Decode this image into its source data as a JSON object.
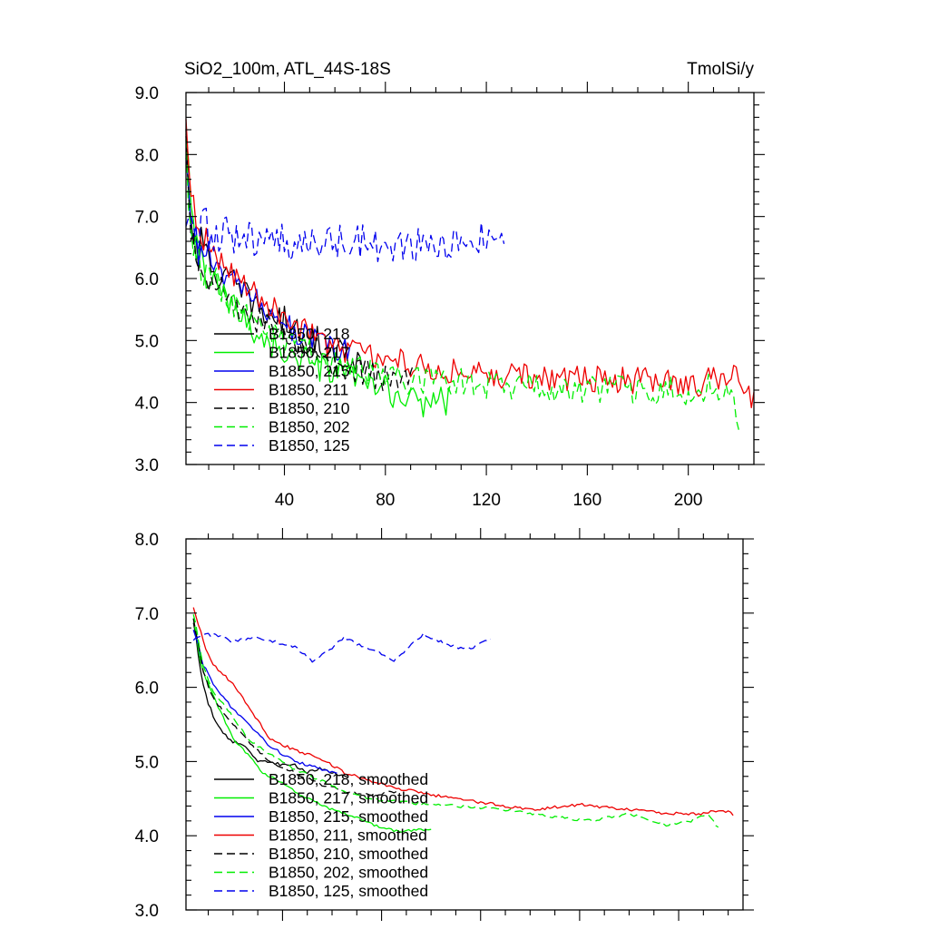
{
  "chart_data": [
    {
      "type": "line",
      "title_left": "SiO2_100m, ATL_44S-18S",
      "title_right": "TmolSi/y",
      "xlabel": "",
      "ylabel": "",
      "xlim": [
        1,
        226
      ],
      "ylim": [
        3.0,
        9.0
      ],
      "yticks": [
        "3.0",
        "4.0",
        "5.0",
        "6.0",
        "7.0",
        "8.0",
        "9.0"
      ],
      "xticks": [
        "40",
        "80",
        "120",
        "160",
        "200"
      ],
      "legend": "bottom-left",
      "series": [
        {
          "name": "B1850, 218",
          "color": "#000000",
          "dash": "solid",
          "length": 72,
          "anchors": [
            [
              1,
              8.3
            ],
            [
              3,
              7.0
            ],
            [
              6,
              6.5
            ],
            [
              10,
              6.2
            ],
            [
              20,
              5.9
            ],
            [
              30,
              5.5
            ],
            [
              40,
              5.3
            ],
            [
              50,
              5.0
            ],
            [
              60,
              4.9
            ],
            [
              72,
              4.6
            ]
          ],
          "noise": 0.26
        },
        {
          "name": "B1850, 217",
          "color": "#00ee00",
          "dash": "solid",
          "length": 106,
          "anchors": [
            [
              1,
              8.2
            ],
            [
              3,
              6.9
            ],
            [
              6,
              6.4
            ],
            [
              10,
              6.0
            ],
            [
              20,
              5.5
            ],
            [
              30,
              5.1
            ],
            [
              40,
              4.8
            ],
            [
              50,
              4.6
            ],
            [
              60,
              4.5
            ],
            [
              70,
              4.3
            ],
            [
              80,
              4.2
            ],
            [
              90,
              4.0
            ],
            [
              106,
              4.05
            ]
          ],
          "noise": 0.25
        },
        {
          "name": "B1850, 215",
          "color": "#0000ee",
          "dash": "solid",
          "length": 66,
          "anchors": [
            [
              1,
              7.8
            ],
            [
              3,
              6.9
            ],
            [
              6,
              6.5
            ],
            [
              10,
              6.3
            ],
            [
              20,
              5.9
            ],
            [
              30,
              5.6
            ],
            [
              40,
              5.3
            ],
            [
              50,
              5.0
            ],
            [
              66,
              4.8
            ]
          ],
          "noise": 0.22
        },
        {
          "name": "B1850, 211",
          "color": "#ee0000",
          "dash": "solid",
          "length": 226,
          "anchors": [
            [
              1,
              8.4
            ],
            [
              3,
              7.2
            ],
            [
              6,
              6.7
            ],
            [
              10,
              6.5
            ],
            [
              20,
              6.1
            ],
            [
              30,
              5.7
            ],
            [
              40,
              5.4
            ],
            [
              50,
              5.1
            ],
            [
              60,
              4.9
            ],
            [
              70,
              4.8
            ],
            [
              80,
              4.7
            ],
            [
              100,
              4.55
            ],
            [
              120,
              4.45
            ],
            [
              150,
              4.4
            ],
            [
              180,
              4.35
            ],
            [
              200,
              4.3
            ],
            [
              220,
              4.4
            ],
            [
              226,
              4.0
            ]
          ],
          "noise": 0.22
        },
        {
          "name": "B1850, 210",
          "color": "#000000",
          "dash": "dashed",
          "length": 91,
          "anchors": [
            [
              1,
              8.1
            ],
            [
              3,
              6.9
            ],
            [
              6,
              6.4
            ],
            [
              10,
              6.1
            ],
            [
              20,
              5.6
            ],
            [
              30,
              5.3
            ],
            [
              40,
              5.0
            ],
            [
              50,
              4.8
            ],
            [
              60,
              4.6
            ],
            [
              70,
              4.5
            ],
            [
              80,
              4.4
            ],
            [
              91,
              4.45
            ]
          ],
          "noise": 0.22
        },
        {
          "name": "B1850, 202",
          "color": "#00ee00",
          "dash": "dashed",
          "length": 220,
          "anchors": [
            [
              1,
              8.0
            ],
            [
              3,
              6.8
            ],
            [
              6,
              6.4
            ],
            [
              10,
              6.1
            ],
            [
              20,
              5.6
            ],
            [
              30,
              5.2
            ],
            [
              40,
              5.0
            ],
            [
              50,
              4.8
            ],
            [
              60,
              4.6
            ],
            [
              70,
              4.5
            ],
            [
              80,
              4.4
            ],
            [
              100,
              4.35
            ],
            [
              120,
              4.3
            ],
            [
              150,
              4.25
            ],
            [
              180,
              4.2
            ],
            [
              200,
              4.2
            ],
            [
              215,
              4.25
            ],
            [
              220,
              3.75
            ]
          ],
          "noise": 0.24
        },
        {
          "name": "B1850, 125",
          "color": "#0000ee",
          "dash": "dashed",
          "length": 127,
          "anchors": [
            [
              1,
              6.5
            ],
            [
              5,
              6.7
            ],
            [
              10,
              6.75
            ],
            [
              30,
              6.6
            ],
            [
              50,
              6.55
            ],
            [
              70,
              6.6
            ],
            [
              90,
              6.5
            ],
            [
              110,
              6.55
            ],
            [
              127,
              6.7
            ]
          ],
          "noise": 0.3
        }
      ]
    },
    {
      "type": "line",
      "xlim": [
        1,
        226
      ],
      "ylim": [
        3.0,
        8.0
      ],
      "yticks": [
        "3.0",
        "4.0",
        "5.0",
        "6.0",
        "7.0",
        "8.0"
      ],
      "legend": "bottom-left",
      "series": [
        {
          "name": "B1850, 218, smoothed",
          "color": "#000000",
          "dash": "solid",
          "length": 66,
          "anchors": [
            [
              4,
              6.9
            ],
            [
              8,
              6.0
            ],
            [
              12,
              5.6
            ],
            [
              18,
              5.3
            ],
            [
              25,
              5.2
            ],
            [
              30,
              5.0
            ],
            [
              35,
              5.0
            ],
            [
              40,
              4.95
            ],
            [
              45,
              4.95
            ],
            [
              50,
              4.85
            ],
            [
              55,
              4.9
            ],
            [
              60,
              4.85
            ],
            [
              66,
              4.8
            ]
          ],
          "noise": 0.02
        },
        {
          "name": "B1850, 217, smoothed",
          "color": "#00ee00",
          "dash": "solid",
          "length": 100,
          "anchors": [
            [
              4,
              6.95
            ],
            [
              7,
              6.3
            ],
            [
              11,
              5.95
            ],
            [
              16,
              5.6
            ],
            [
              20,
              5.3
            ],
            [
              26,
              5.1
            ],
            [
              32,
              4.85
            ],
            [
              40,
              4.7
            ],
            [
              50,
              4.5
            ],
            [
              60,
              4.35
            ],
            [
              70,
              4.25
            ],
            [
              80,
              4.1
            ],
            [
              88,
              4.05
            ],
            [
              100,
              4.1
            ]
          ],
          "noise": 0.02
        },
        {
          "name": "B1850, 215, smoothed",
          "color": "#0000ee",
          "dash": "solid",
          "length": 62,
          "anchors": [
            [
              4,
              6.8
            ],
            [
              8,
              6.3
            ],
            [
              12,
              6.05
            ],
            [
              20,
              5.7
            ],
            [
              28,
              5.45
            ],
            [
              35,
              5.2
            ],
            [
              45,
              5.0
            ],
            [
              55,
              4.9
            ],
            [
              62,
              4.85
            ]
          ],
          "noise": 0.02
        },
        {
          "name": "B1850, 211, smoothed",
          "color": "#ee0000",
          "dash": "solid",
          "length": 222,
          "anchors": [
            [
              4,
              7.1
            ],
            [
              8,
              6.6
            ],
            [
              12,
              6.3
            ],
            [
              20,
              6.05
            ],
            [
              28,
              5.65
            ],
            [
              35,
              5.3
            ],
            [
              45,
              5.15
            ],
            [
              55,
              5.05
            ],
            [
              65,
              4.85
            ],
            [
              75,
              4.75
            ],
            [
              85,
              4.65
            ],
            [
              100,
              4.55
            ],
            [
              120,
              4.45
            ],
            [
              140,
              4.35
            ],
            [
              160,
              4.42
            ],
            [
              180,
              4.35
            ],
            [
              195,
              4.3
            ],
            [
              210,
              4.3
            ],
            [
              218,
              4.35
            ],
            [
              222,
              4.28
            ]
          ],
          "noise": 0.02
        },
        {
          "name": "B1850, 210, smoothed",
          "color": "#000000",
          "dash": "dashed",
          "length": 87,
          "anchors": [
            [
              4,
              6.95
            ],
            [
              8,
              6.2
            ],
            [
              12,
              5.85
            ],
            [
              20,
              5.5
            ],
            [
              28,
              5.2
            ],
            [
              35,
              5.0
            ],
            [
              45,
              4.85
            ],
            [
              55,
              4.7
            ],
            [
              65,
              4.6
            ],
            [
              75,
              4.55
            ],
            [
              87,
              4.6
            ]
          ],
          "noise": 0.02
        },
        {
          "name": "B1850, 202, smoothed",
          "color": "#00ee00",
          "dash": "dashed",
          "length": 216,
          "anchors": [
            [
              4,
              7.0
            ],
            [
              8,
              6.3
            ],
            [
              12,
              5.95
            ],
            [
              20,
              5.6
            ],
            [
              26,
              5.3
            ],
            [
              35,
              5.1
            ],
            [
              45,
              4.9
            ],
            [
              55,
              4.75
            ],
            [
              65,
              4.6
            ],
            [
              75,
              4.5
            ],
            [
              90,
              4.45
            ],
            [
              110,
              4.4
            ],
            [
              130,
              4.35
            ],
            [
              150,
              4.25
            ],
            [
              165,
              4.2
            ],
            [
              180,
              4.3
            ],
            [
              195,
              4.15
            ],
            [
              205,
              4.2
            ],
            [
              212,
              4.3
            ],
            [
              216,
              4.1
            ]
          ],
          "noise": 0.02
        },
        {
          "name": "B1850, 125, smoothed",
          "color": "#0000ee",
          "dash": "dashed",
          "length": 124,
          "anchors": [
            [
              4,
              6.65
            ],
            [
              12,
              6.72
            ],
            [
              20,
              6.62
            ],
            [
              30,
              6.68
            ],
            [
              38,
              6.6
            ],
            [
              45,
              6.55
            ],
            [
              52,
              6.35
            ],
            [
              58,
              6.48
            ],
            [
              65,
              6.68
            ],
            [
              72,
              6.55
            ],
            [
              80,
              6.45
            ],
            [
              85,
              6.35
            ],
            [
              92,
              6.58
            ],
            [
              97,
              6.72
            ],
            [
              105,
              6.6
            ],
            [
              113,
              6.52
            ],
            [
              118,
              6.55
            ],
            [
              124,
              6.65
            ]
          ],
          "noise": 0.02
        }
      ]
    }
  ]
}
